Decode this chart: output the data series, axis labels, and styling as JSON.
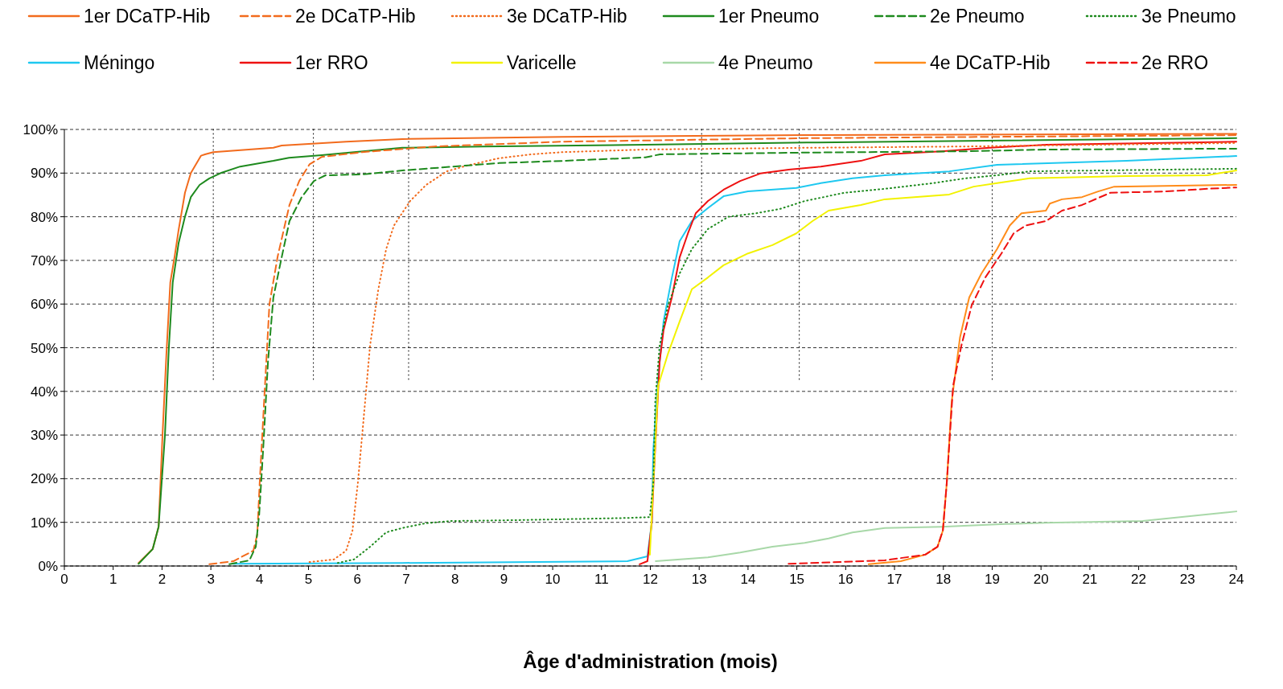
{
  "chart_data": {
    "type": "line",
    "xlabel": "Âge d'administration (mois)",
    "xlim": [
      0,
      24
    ],
    "xticks": [
      0,
      1,
      2,
      3,
      4,
      5,
      6,
      7,
      8,
      9,
      10,
      11,
      12,
      13,
      14,
      15,
      16,
      17,
      18,
      19,
      20,
      21,
      22,
      23,
      24
    ],
    "ylim": [
      0,
      100
    ],
    "yticks": [
      {
        "value": 0,
        "label": "0%"
      },
      {
        "value": 10,
        "label": "10%"
      },
      {
        "value": 20,
        "label": "20%"
      },
      {
        "value": 30,
        "label": "30%"
      },
      {
        "value": 40,
        "label": "40%"
      },
      {
        "value": 50,
        "label": "50%"
      },
      {
        "value": 60,
        "label": "60%"
      },
      {
        "value": 70,
        "label": "70%"
      },
      {
        "value": 80,
        "label": "80%"
      },
      {
        "value": 90,
        "label": "90%"
      },
      {
        "value": 100,
        "label": "100%"
      }
    ],
    "grid": "y",
    "legend": "top",
    "marker": "none",
    "ref_lines": [
      {
        "axis": "x",
        "value": 3.05,
        "color": "#000000",
        "line_style": "dotted"
      },
      {
        "axis": "x",
        "value": 5.1,
        "color": "#000000",
        "line_style": "dotted"
      },
      {
        "axis": "x",
        "value": 7.05,
        "color": "#000000",
        "line_style": "dotted"
      },
      {
        "axis": "x",
        "value": 13.05,
        "color": "#000000",
        "line_style": "dotted"
      },
      {
        "axis": "x",
        "value": 15.05,
        "color": "#000000",
        "line_style": "dotted"
      },
      {
        "axis": "x",
        "value": 19,
        "color": "#000000",
        "line_style": "dotted"
      }
    ],
    "series": [
      {
        "name": "1er DCaTP-Hib",
        "color": "#f26b1d",
        "line_style": "solid",
        "x": [
          1.52,
          1.81,
          1.93,
          2.01,
          2.09,
          2.17,
          2.26,
          2.34,
          2.47,
          2.59,
          2.8,
          2.88,
          3.05,
          4.28,
          4.45,
          5.77,
          6.92,
          10.2,
          15.2,
          24
        ],
        "values": [
          0.7,
          3.9,
          9,
          30,
          48.6,
          65,
          71,
          77,
          85.5,
          90,
          94,
          94.3,
          94.8,
          95.8,
          96.3,
          97.2,
          97.8,
          98.3,
          98.7,
          99
        ]
      },
      {
        "name": "2e DCaTP-Hib",
        "color": "#f26b1d",
        "line_style": "dashed",
        "x": [
          2.97,
          3.46,
          3.87,
          3.95,
          4,
          4.09,
          4.2,
          4.37,
          4.61,
          4.81,
          5.02,
          5.27,
          6.1,
          7.58,
          10.2,
          15.2,
          24
        ],
        "values": [
          0.4,
          1.1,
          3.5,
          7.2,
          19,
          37.6,
          60,
          71,
          82.7,
          88.2,
          92,
          93.7,
          94.8,
          96.1,
          97.2,
          98,
          98.7
        ]
      },
      {
        "name": "3e DCaTP-Hib",
        "color": "#f26b1d",
        "line_style": "dotted",
        "x": [
          5.02,
          5.52,
          5.77,
          5.9,
          6.01,
          6.13,
          6.26,
          6.43,
          6.59,
          6.75,
          7.08,
          7.41,
          7.83,
          8.24,
          8.9,
          9.56,
          10.2,
          11.9,
          15.2,
          18.5,
          24
        ],
        "values": [
          0.9,
          1.5,
          3.5,
          8.1,
          19,
          33.9,
          50.5,
          63.4,
          72.6,
          78,
          83.6,
          87.3,
          90.4,
          91.7,
          93.4,
          94.3,
          94.8,
          95.4,
          95.8,
          96.1,
          96.9
        ]
      },
      {
        "name": "1er Pneumo",
        "color": "#1e8a1e",
        "line_style": "solid",
        "x": [
          1.52,
          1.81,
          1.93,
          2.06,
          2.14,
          2.22,
          2.34,
          2.47,
          2.59,
          2.77,
          2.97,
          3.2,
          3.6,
          4.28,
          4.6,
          5.27,
          5.93,
          6.92,
          8.57,
          11.9,
          15.2,
          24
        ],
        "values": [
          0.5,
          3.9,
          9,
          30,
          50,
          65,
          74,
          80,
          84.5,
          87.3,
          88.8,
          90,
          91.5,
          92.8,
          93.5,
          94.1,
          94.8,
          95.8,
          96.1,
          96.5,
          97,
          98
        ]
      },
      {
        "name": "2e Pneumo",
        "color": "#1e8a1e",
        "line_style": "dashed",
        "x": [
          3.38,
          3.79,
          3.92,
          3.99,
          4.07,
          4.17,
          4.28,
          4.45,
          4.61,
          4.86,
          5.11,
          5.35,
          6.1,
          6.92,
          7.74,
          8.9,
          10.2,
          11.9,
          12.2,
          15.2,
          18.5,
          20.1,
          24
        ],
        "values": [
          0.4,
          1.3,
          4.4,
          11.8,
          26.5,
          46.8,
          61.5,
          70.7,
          79,
          84.5,
          88.2,
          89.5,
          89.7,
          90.6,
          91.3,
          92.3,
          92.8,
          93.6,
          94.3,
          94.7,
          95,
          95.4,
          95.6
        ]
      },
      {
        "name": "3e Pneumo",
        "color": "#1e8a1e",
        "line_style": "dotted",
        "x": [
          5.6,
          5.93,
          6.26,
          6.59,
          6.92,
          7.41,
          7.91,
          9.23,
          11.53,
          11.99,
          12.06,
          12.1,
          12.19,
          12.36,
          12.6,
          12.85,
          13.18,
          13.6,
          14.17,
          14.66,
          15.16,
          15.98,
          16.8,
          17.79,
          18.45,
          19.1,
          19.77,
          24
        ],
        "values": [
          0.7,
          1.5,
          4.4,
          7.7,
          8.7,
          9.8,
          10.3,
          10.5,
          11,
          11.2,
          19,
          37.6,
          50.5,
          59.7,
          67,
          72.6,
          77.2,
          80,
          80.8,
          81.8,
          83.6,
          85.5,
          86.4,
          87.7,
          88.8,
          89.5,
          90.4,
          91
        ]
      },
      {
        "name": "Méningo",
        "color": "#1ec8f0",
        "line_style": "solid",
        "x": [
          3.46,
          6.92,
          11.53,
          11.94,
          12.03,
          12.06,
          12.16,
          12.27,
          12.44,
          12.6,
          12.85,
          13.18,
          13.5,
          14,
          14.99,
          15.49,
          16.14,
          16.8,
          18.12,
          19.1,
          21.75,
          24
        ],
        "values": [
          0.5,
          0.7,
          1.1,
          2.2,
          10,
          26.5,
          43,
          56,
          66,
          74.4,
          79,
          82,
          84.7,
          85.8,
          86.6,
          87.7,
          88.8,
          89.5,
          90.4,
          91.9,
          92.8,
          93.9
        ]
      },
      {
        "name": "1er RRO",
        "color": "#ee1111",
        "line_style": "solid",
        "x": [
          11.78,
          11.94,
          12.03,
          12.08,
          12.19,
          12.27,
          12.44,
          12.6,
          12.77,
          12.93,
          13.18,
          13.5,
          13.84,
          14.25,
          14.83,
          15.49,
          16.31,
          16.8,
          17.96,
          18.95,
          20.1,
          24
        ],
        "values": [
          0.4,
          1.1,
          10,
          22.8,
          46.8,
          54,
          61.5,
          70.7,
          76.2,
          80.8,
          83.6,
          86.2,
          88.2,
          89.9,
          90.8,
          91.5,
          92.8,
          94.3,
          95,
          95.8,
          96.5,
          97.2
        ]
      },
      {
        "name": "Varicelle",
        "color": "#f2f200",
        "line_style": "solid",
        "x": [
          11.99,
          12.06,
          12.16,
          12.36,
          12.6,
          12.85,
          13.18,
          13.5,
          14,
          14.5,
          14.99,
          15.32,
          15.65,
          16.31,
          16.8,
          18.12,
          18.62,
          19.1,
          19.77,
          21.75,
          23.4,
          24
        ],
        "values": [
          2.6,
          19,
          41.3,
          48.6,
          56,
          63.4,
          66.1,
          68.9,
          71.6,
          73.5,
          76.2,
          79,
          81.4,
          82.7,
          84,
          85.1,
          86.9,
          87.7,
          88.8,
          89.3,
          89.5,
          90.6
        ]
      },
      {
        "name": "4e Pneumo",
        "color": "#a8d8a8",
        "line_style": "solid",
        "x": [
          12.11,
          13.18,
          13.84,
          14.5,
          15.16,
          15.65,
          16.14,
          16.8,
          17.96,
          19.27,
          20.1,
          22.08,
          24
        ],
        "values": [
          1.1,
          2,
          3.1,
          4.4,
          5.3,
          6.3,
          7.7,
          8.7,
          9,
          9.6,
          9.9,
          10.3,
          12.5
        ]
      },
      {
        "name": "4e DCaTP-Hib",
        "color": "#ff8c1a",
        "line_style": "solid",
        "x": [
          16.47,
          17.13,
          17.63,
          17.88,
          17.99,
          18.07,
          18.17,
          18.34,
          18.53,
          18.78,
          19.1,
          19.36,
          19.6,
          20.1,
          20.18,
          20.43,
          20.84,
          21.17,
          21.5,
          24
        ],
        "values": [
          0.4,
          1.1,
          2.6,
          4.4,
          8.1,
          19,
          37.6,
          52.3,
          61.5,
          67,
          72.6,
          78,
          80.8,
          81.4,
          83,
          84,
          84.5,
          85.8,
          86.9,
          87.3
        ]
      },
      {
        "name": "2e RRO",
        "color": "#ee1111",
        "line_style": "dashed",
        "x": [
          14.83,
          16.8,
          17.63,
          17.88,
          17.99,
          18.07,
          18.2,
          18.37,
          18.58,
          18.86,
          19.19,
          19.44,
          19.69,
          20.1,
          20.43,
          20.84,
          21.42,
          22.57,
          23.4,
          24
        ],
        "values": [
          0.5,
          1.3,
          2.6,
          4.4,
          8.1,
          19,
          41.3,
          50.5,
          59.7,
          66.1,
          71.6,
          76.2,
          78,
          79,
          81.4,
          82.7,
          85.5,
          85.8,
          86.4,
          86.7
        ]
      }
    ]
  }
}
